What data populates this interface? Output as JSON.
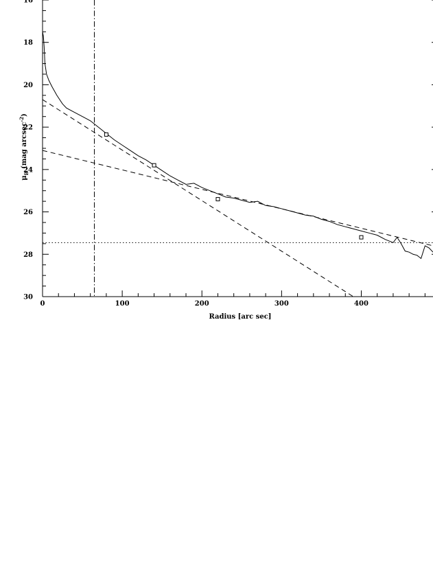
{
  "chart_data": {
    "type": "line",
    "title": "",
    "xlabel": "Radius [arc sec]",
    "ylabel_main": "μ",
    "ylabel_sub": "B",
    "ylabel_rest": " (mag arcsec",
    "ylabel_sup": "-2",
    "ylabel_close": ")",
    "xlim": [
      0,
      490
    ],
    "ylim": [
      30,
      16
    ],
    "y_inverted": true,
    "xticks": [
      0,
      100,
      200,
      300,
      400
    ],
    "yticks": [
      16,
      18,
      20,
      22,
      24,
      26,
      28,
      30
    ],
    "grid": false,
    "legend": "none",
    "series": [
      {
        "style": "solid",
        "x": [
          0,
          1,
          2,
          3,
          5,
          8,
          12,
          18,
          25,
          30,
          40,
          50,
          60,
          70,
          80,
          90,
          100,
          110,
          120,
          130,
          140,
          150,
          160,
          170,
          180,
          190,
          200,
          210,
          220,
          230,
          240,
          250,
          260,
          270,
          280,
          290,
          300,
          310,
          320,
          330,
          340,
          350,
          360,
          370,
          380,
          390,
          400,
          410,
          420,
          430,
          440,
          445,
          450,
          455,
          460,
          465,
          470,
          475,
          480,
          485,
          490
        ],
        "y": [
          17.5,
          17.7,
          18.2,
          19.0,
          19.5,
          19.8,
          20.1,
          20.5,
          20.9,
          21.1,
          21.3,
          21.5,
          21.7,
          22.0,
          22.3,
          22.6,
          22.85,
          23.1,
          23.35,
          23.55,
          23.8,
          24.05,
          24.3,
          24.5,
          24.7,
          24.65,
          24.85,
          25.0,
          25.15,
          25.3,
          25.35,
          25.45,
          25.55,
          25.5,
          25.7,
          25.75,
          25.85,
          25.95,
          26.05,
          26.15,
          26.2,
          26.35,
          26.45,
          26.6,
          26.7,
          26.8,
          26.9,
          27.0,
          27.1,
          27.3,
          27.45,
          27.2,
          27.5,
          27.85,
          27.9,
          28.0,
          28.05,
          28.2,
          27.6,
          27.7,
          27.9
        ]
      },
      {
        "style": "dashed",
        "x": [
          0,
          390
        ],
        "y": [
          20.7,
          30.0
        ]
      },
      {
        "style": "dashed",
        "x": [
          0,
          490
        ],
        "y": [
          23.1,
          27.6
        ]
      },
      {
        "style": "dotted",
        "x": [
          0,
          490
        ],
        "y": [
          27.45,
          27.45
        ]
      },
      {
        "style": "dash-dot-vertical",
        "x": [
          65,
          65
        ],
        "y": [
          16,
          30
        ]
      }
    ],
    "markers": {
      "shape": "square",
      "x": [
        80,
        140,
        220,
        400
      ],
      "y": [
        22.35,
        23.8,
        25.4,
        27.2
      ]
    }
  }
}
